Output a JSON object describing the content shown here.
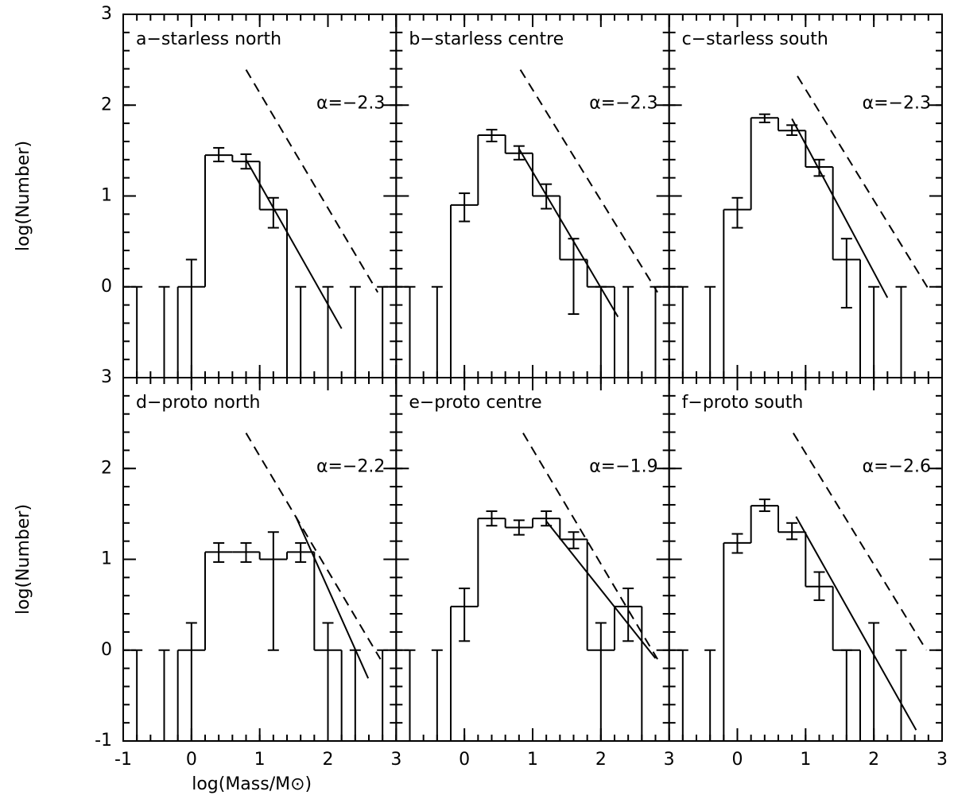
{
  "chart_data": [
    {
      "type": "histogram",
      "label": "a−starless north",
      "alpha_label": "α=−2.3",
      "ylabel": "log(Number)",
      "bins": [
        -0.2,
        0.2,
        0.6,
        1.0,
        1.4
      ],
      "values": [
        0,
        1.45,
        1.38,
        0.85
      ],
      "errorbars": {
        "x": [
          -0.8,
          -0.4,
          0,
          0.4,
          0.8,
          1.2,
          1.6,
          2.0,
          2.4,
          2.8
        ],
        "low": [
          -1,
          -1,
          -1,
          1.38,
          1.3,
          0.65,
          -1,
          -1,
          -1,
          -1
        ],
        "high": [
          0,
          0,
          0.3,
          1.53,
          1.46,
          0.98,
          0,
          0,
          0,
          0
        ]
      },
      "fit": {
        "x": [
          0.8,
          2.2
        ],
        "y": [
          1.4,
          -0.46
        ]
      },
      "slope_guide": {
        "x": [
          0.8,
          2.73
        ],
        "y": [
          2.39,
          -0.06
        ]
      },
      "xlim": [
        -1,
        3
      ],
      "ylim": [
        -1,
        3
      ],
      "xticks": [
        -1,
        0,
        1,
        2,
        3
      ],
      "yticks": [
        0,
        1,
        2,
        3
      ],
      "minor_tick_step": 0.2,
      "show_xticklabels": false,
      "show_yticklabels": true,
      "color": "#000000"
    },
    {
      "type": "histogram",
      "label": "b−starless centre",
      "alpha_label": "α=−2.3",
      "bins": [
        -0.2,
        0.2,
        0.6,
        1.0,
        1.4,
        1.8,
        2.2
      ],
      "values": [
        0.9,
        1.67,
        1.47,
        1.0,
        0.3,
        0
      ],
      "errorbars": {
        "x": [
          -0.8,
          -0.4,
          0,
          0.4,
          0.8,
          1.2,
          1.6,
          2.0,
          2.4,
          2.8
        ],
        "low": [
          -1,
          -1,
          0.72,
          1.6,
          1.4,
          0.86,
          -0.3,
          -1,
          -1,
          -1
        ],
        "high": [
          0,
          0,
          1.03,
          1.73,
          1.55,
          1.13,
          0.53,
          0,
          0,
          0
        ]
      },
      "fit": {
        "x": [
          0.8,
          2.25
        ],
        "y": [
          1.52,
          -0.33
        ]
      },
      "slope_guide": {
        "x": [
          0.82,
          2.83
        ],
        "y": [
          2.39,
          -0.06
        ]
      },
      "xlim": [
        -1,
        3
      ],
      "ylim": [
        -1,
        3
      ],
      "xticks": [
        -1,
        0,
        1,
        2,
        3
      ],
      "yticks": [
        0,
        1,
        2,
        3
      ],
      "minor_tick_step": 0.2,
      "show_xticklabels": false,
      "show_yticklabels": false,
      "color": "#000000"
    },
    {
      "type": "histogram",
      "label": "c−starless south",
      "alpha_label": "α=−2.3",
      "bins": [
        -0.2,
        0.2,
        0.6,
        1.0,
        1.4,
        1.8
      ],
      "values": [
        0.85,
        1.86,
        1.72,
        1.32,
        0.3
      ],
      "errorbars": {
        "x": [
          -0.8,
          -0.4,
          0,
          0.4,
          0.8,
          1.2,
          1.6,
          2.0,
          2.4
        ],
        "low": [
          -1,
          -1,
          0.65,
          1.81,
          1.67,
          1.22,
          -0.23,
          -1,
          -1
        ],
        "high": [
          0,
          0,
          0.98,
          1.9,
          1.78,
          1.4,
          0.53,
          0,
          0
        ]
      },
      "fit": {
        "x": [
          0.8,
          2.2
        ],
        "y": [
          1.85,
          -0.12
        ]
      },
      "slope_guide": {
        "x": [
          0.88,
          2.83
        ],
        "y": [
          2.32,
          -0.06
        ]
      },
      "xlim": [
        -1,
        3
      ],
      "ylim": [
        -1,
        3
      ],
      "xticks": [
        -1,
        0,
        1,
        2,
        3
      ],
      "yticks": [
        0,
        1,
        2,
        3
      ],
      "minor_tick_step": 0.2,
      "show_xticklabels": false,
      "show_yticklabels": false,
      "color": "#000000"
    },
    {
      "type": "histogram",
      "label": "d−proto north",
      "alpha_label": "α=−2.2",
      "ylabel": "log(Number)",
      "xlabel": "log(Mass/M⊙)",
      "bins": [
        -0.2,
        0.2,
        0.6,
        1.0,
        1.4,
        1.8,
        2.2
      ],
      "values": [
        0,
        1.08,
        1.08,
        1.0,
        1.08,
        0
      ],
      "errorbars": {
        "x": [
          -0.8,
          -0.4,
          0,
          0.4,
          0.8,
          1.2,
          1.6,
          2.0,
          2.4,
          2.8
        ],
        "low": [
          -1,
          -1,
          -1,
          0.97,
          0.97,
          0,
          0.97,
          -1,
          -1,
          -1
        ],
        "high": [
          0,
          0,
          0.3,
          1.18,
          1.18,
          1.3,
          1.18,
          0.3,
          0,
          0
        ]
      },
      "fit": {
        "x": [
          1.53,
          2.59
        ],
        "y": [
          1.47,
          -0.31
        ]
      },
      "slope_guide": {
        "x": [
          0.8,
          2.77
        ],
        "y": [
          2.39,
          -0.1
        ]
      },
      "xlim": [
        -1,
        3
      ],
      "ylim": [
        -1,
        3
      ],
      "xticks": [
        -1,
        0,
        1,
        2,
        3
      ],
      "yticks": [
        -1,
        0,
        1,
        2,
        3
      ],
      "minor_tick_step": 0.2,
      "show_xticklabels": true,
      "show_yticklabels": true,
      "color": "#000000"
    },
    {
      "type": "histogram",
      "label": "e−proto centre",
      "alpha_label": "α=−1.9",
      "bins": [
        -0.2,
        0.2,
        0.6,
        1.0,
        1.4,
        1.8,
        2.2,
        2.6
      ],
      "values": [
        0.48,
        1.45,
        1.35,
        1.45,
        1.22,
        0,
        0.48
      ],
      "errorbars": {
        "x": [
          -0.8,
          -0.4,
          0,
          0.4,
          0.8,
          1.2,
          1.6,
          2.0,
          2.4
        ],
        "low": [
          -1,
          -1,
          0.1,
          1.37,
          1.27,
          1.37,
          1.12,
          -1,
          0.1
        ],
        "high": [
          0,
          0,
          0.68,
          1.53,
          1.43,
          1.53,
          1.3,
          0.3,
          0.68
        ]
      },
      "fit": {
        "x": [
          1.2,
          2.8
        ],
        "y": [
          1.42,
          -0.09
        ]
      },
      "slope_guide": {
        "x": [
          0.86,
          2.83
        ],
        "y": [
          2.39,
          -0.1
        ]
      },
      "xlim": [
        -1,
        3
      ],
      "ylim": [
        -1,
        3
      ],
      "xticks": [
        0,
        1,
        2,
        3
      ],
      "yticks": [
        -1,
        0,
        1,
        2,
        3
      ],
      "minor_tick_step": 0.2,
      "show_xticklabels": true,
      "show_yticklabels": false,
      "color": "#000000"
    },
    {
      "type": "histogram",
      "label": "f−proto south",
      "alpha_label": "α=−2.6",
      "bins": [
        -0.2,
        0.2,
        0.6,
        1.0,
        1.4,
        1.8
      ],
      "values": [
        1.18,
        1.59,
        1.3,
        0.7,
        0
      ],
      "errorbars": {
        "x": [
          -0.8,
          -0.4,
          0,
          0.4,
          0.8,
          1.2,
          1.6,
          2.0,
          2.4
        ],
        "low": [
          -1,
          -1,
          1.07,
          1.53,
          1.22,
          0.55,
          -1,
          -1,
          -1
        ],
        "high": [
          0,
          0,
          1.28,
          1.66,
          1.4,
          0.86,
          0,
          0.3,
          0
        ]
      },
      "fit": {
        "x": [
          0.86,
          2.62
        ],
        "y": [
          1.47,
          -0.88
        ]
      },
      "slope_guide": {
        "x": [
          0.82,
          2.77
        ],
        "y": [
          2.39,
          0
        ]
      },
      "xlim": [
        -1,
        3
      ],
      "ylim": [
        -1,
        3
      ],
      "xticks": [
        0,
        1,
        2,
        3
      ],
      "yticks": [
        -1,
        0,
        1,
        2,
        3
      ],
      "minor_tick_step": 0.2,
      "show_xticklabels": true,
      "show_yticklabels": false,
      "color": "#000000"
    }
  ]
}
